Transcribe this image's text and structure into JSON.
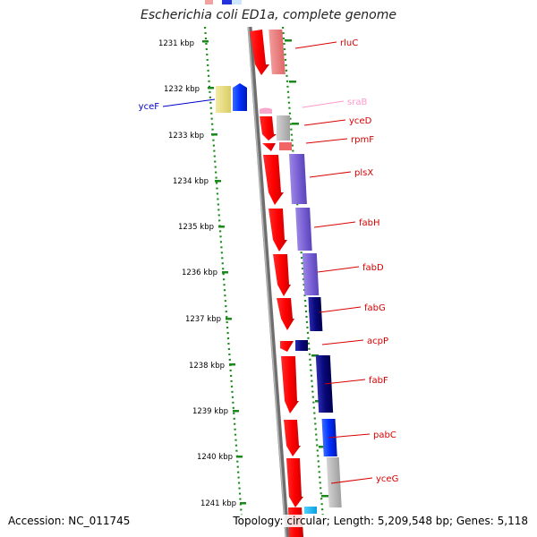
{
  "header": {
    "title": "Escherichia coli ED1a, complete genome"
  },
  "footer": {
    "accession": "Accession: NC_011745",
    "summary": "Topology: circular; Length: 5,209,548 bp; Genes: 5,118"
  },
  "ruler": {
    "ticks": [
      "1231 kbp",
      "1232 kbp",
      "1233 kbp",
      "1234 kbp",
      "1235 kbp",
      "1236 kbp",
      "1237 kbp",
      "1238 kbp",
      "1239 kbp",
      "1240 kbp",
      "1241 kbp"
    ]
  },
  "genes": [
    {
      "name": "rluC",
      "color": "#d80000"
    },
    {
      "name": "sraB",
      "color": "#ff99cc"
    },
    {
      "name": "yceD",
      "color": "#d80000"
    },
    {
      "name": "rpmF",
      "color": "#d80000"
    },
    {
      "name": "plsX",
      "color": "#d80000"
    },
    {
      "name": "fabH",
      "color": "#d80000"
    },
    {
      "name": "fabD",
      "color": "#d80000"
    },
    {
      "name": "fabG",
      "color": "#d80000"
    },
    {
      "name": "acpP",
      "color": "#d80000"
    },
    {
      "name": "fabF",
      "color": "#d80000"
    },
    {
      "name": "pabC",
      "color": "#d80000"
    },
    {
      "name": "yceG",
      "color": "#d80000"
    },
    {
      "name": "yceF",
      "color": "#0000cc"
    }
  ],
  "colors": {
    "forward_cds": "#ff0000",
    "reverse_cds": "#0000ff",
    "rna": "#ff99cc",
    "backbone": "#808080",
    "tick": "#008000"
  }
}
